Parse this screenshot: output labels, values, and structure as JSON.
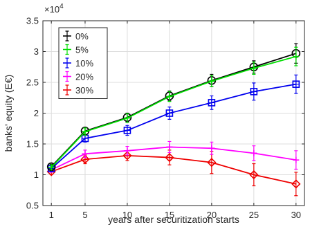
{
  "chart_data": {
    "type": "line",
    "title": "",
    "xlabel": "years after securitization starts",
    "ylabel": "banks' equity (E€)",
    "exponent_label": "×10",
    "exponent_power": "4",
    "x": [
      1,
      5,
      10,
      15,
      20,
      25,
      30
    ],
    "xlim": [
      0,
      31
    ],
    "ylim": [
      5000,
      35000
    ],
    "xticks": [
      1,
      5,
      10,
      15,
      20,
      25,
      30
    ],
    "xtick_labels": [
      "1",
      "5",
      "10",
      "15",
      "20",
      "25",
      "30"
    ],
    "yticks": [
      5000,
      10000,
      15000,
      20000,
      25000,
      30000,
      35000
    ],
    "ytick_labels": [
      "0.5",
      "1",
      "1.5",
      "2",
      "2.5",
      "3",
      "3.5"
    ],
    "grid": true,
    "legend_position": "top-left",
    "series": [
      {
        "name": "0%",
        "color": "#000000",
        "marker": "circle",
        "values": [
          11300,
          17100,
          19300,
          22800,
          25300,
          27500,
          29700
        ],
        "errors": [
          400,
          600,
          700,
          800,
          1000,
          1000,
          1600
        ]
      },
      {
        "name": "5%",
        "color": "#00dd00",
        "marker": "plus",
        "values": [
          11200,
          17000,
          19200,
          22700,
          25200,
          27300,
          29200
        ],
        "errors": [
          400,
          600,
          700,
          800,
          900,
          1000,
          1500
        ]
      },
      {
        "name": "10%",
        "color": "#0000ee",
        "marker": "square",
        "values": [
          11000,
          15900,
          17200,
          20000,
          21700,
          23500,
          24700
        ],
        "errors": [
          400,
          600,
          800,
          1000,
          1100,
          1400,
          1500
        ]
      },
      {
        "name": "20%",
        "color": "#ff00ff",
        "marker": "plus",
        "values": [
          10800,
          13400,
          13900,
          14500,
          14300,
          13500,
          12400
        ],
        "errors": [
          400,
          600,
          700,
          900,
          1000,
          1200,
          1500
        ]
      },
      {
        "name": "30%",
        "color": "#ee0000",
        "marker": "diamond",
        "values": [
          10500,
          12500,
          13100,
          12800,
          12000,
          10000,
          8500
        ],
        "errors": [
          400,
          700,
          800,
          1200,
          1800,
          1800,
          1900
        ]
      }
    ]
  }
}
